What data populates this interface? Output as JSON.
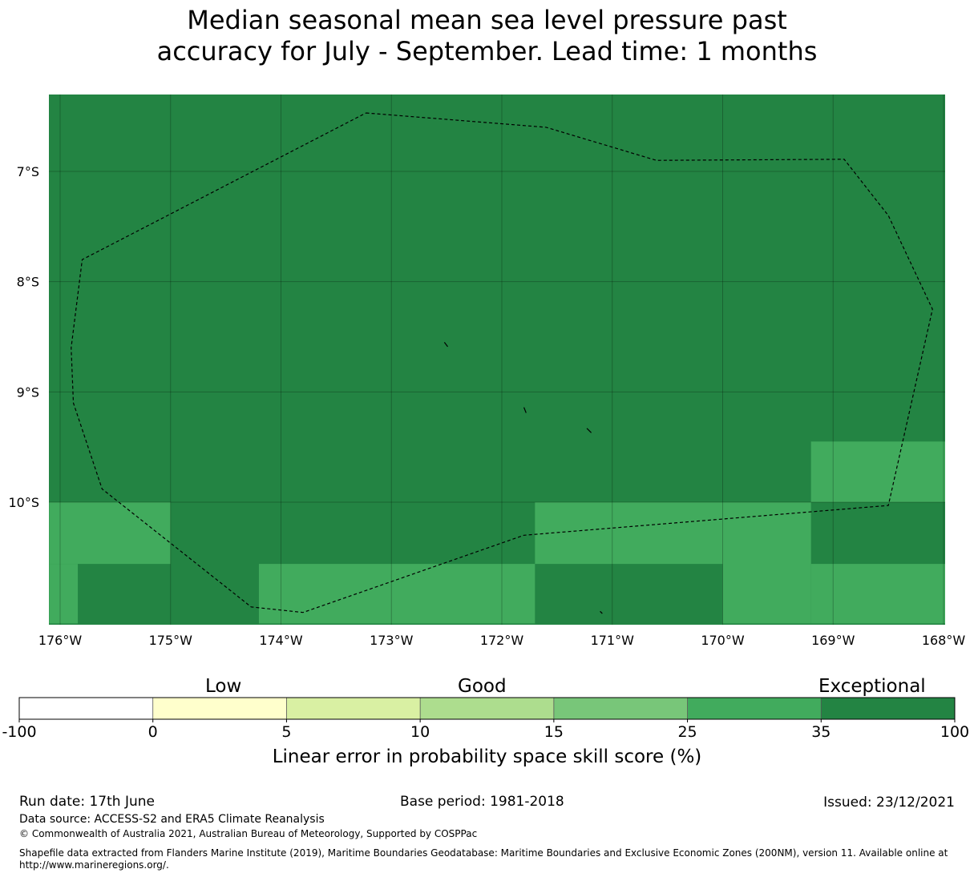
{
  "title": {
    "line1": "Median seasonal mean sea level pressure past",
    "line2": "accuracy for July - September. Lead time: 1 months"
  },
  "map": {
    "lon_range": [
      -176,
      -168
    ],
    "lat_range": [
      -11.1,
      -6.3
    ],
    "lon_ticks": [
      {
        "value": -176,
        "label": "176°W"
      },
      {
        "value": -175,
        "label": "175°W"
      },
      {
        "value": -174,
        "label": "174°W"
      },
      {
        "value": -173,
        "label": "173°W"
      },
      {
        "value": -172,
        "label": "172°W"
      },
      {
        "value": -171,
        "label": "171°W"
      },
      {
        "value": -170,
        "label": "170°W"
      },
      {
        "value": -169,
        "label": "169°W"
      },
      {
        "value": -168,
        "label": "168°W"
      }
    ],
    "lat_ticks": [
      {
        "value": -7,
        "label": "7°S"
      },
      {
        "value": -8,
        "label": "8°S"
      },
      {
        "value": -9,
        "label": "9°S"
      },
      {
        "value": -10,
        "label": "10°S"
      }
    ],
    "background_category": "35-100",
    "cells": [
      {
        "lon": [
          -176.1,
          -175.0
        ],
        "lat": [
          -10.56,
          -10.0
        ],
        "category": "25-35"
      },
      {
        "lon": [
          -176.1,
          -175.84
        ],
        "lat": [
          -11.1,
          -10.56
        ],
        "category": "25-35"
      },
      {
        "lon": [
          -174.2,
          -171.7
        ],
        "lat": [
          -11.1,
          -10.56
        ],
        "category": "25-35"
      },
      {
        "lon": [
          -171.7,
          -170.0
        ],
        "lat": [
          -10.56,
          -10.0
        ],
        "category": "25-35"
      },
      {
        "lon": [
          -170.0,
          -169.2
        ],
        "lat": [
          -11.1,
          -10.0
        ],
        "category": "25-35"
      },
      {
        "lon": [
          -169.2,
          -167.9
        ],
        "lat": [
          -11.1,
          -10.56
        ],
        "category": "25-35"
      },
      {
        "lon": [
          -169.2,
          -167.9
        ],
        "lat": [
          -10.0,
          -9.45
        ],
        "category": "25-35"
      }
    ],
    "eez_boundary": [
      [
        -173.23,
        -6.47
      ],
      [
        -171.6,
        -6.6
      ],
      [
        -170.6,
        -6.9
      ],
      [
        -168.9,
        -6.89
      ],
      [
        -168.5,
        -7.4
      ],
      [
        -168.1,
        -8.25
      ],
      [
        -168.5,
        -10.03
      ],
      [
        -171.8,
        -10.3
      ],
      [
        -173.8,
        -11.0
      ],
      [
        -174.27,
        -10.95
      ],
      [
        -175.62,
        -9.88
      ],
      [
        -175.88,
        -9.1
      ],
      [
        -175.9,
        -8.6
      ],
      [
        -175.8,
        -7.8
      ],
      [
        -173.23,
        -6.47
      ]
    ],
    "islands": [
      [
        [
          -172.52,
          -8.55
        ],
        [
          -172.49,
          -8.59
        ]
      ],
      [
        [
          -171.8,
          -9.14
        ],
        [
          -171.78,
          -9.19
        ]
      ],
      [
        [
          -171.23,
          -9.33
        ],
        [
          -171.19,
          -9.37
        ]
      ],
      [
        [
          -171.11,
          -10.99
        ],
        [
          -171.09,
          -11.01
        ]
      ]
    ]
  },
  "legend": {
    "categories": [
      {
        "range": "-100-0",
        "color": "#ffffff"
      },
      {
        "range": "0-5",
        "color": "#ffffcc"
      },
      {
        "range": "5-10",
        "color": "#d9f0a3"
      },
      {
        "range": "10-15",
        "color": "#addd8e"
      },
      {
        "range": "15-25",
        "color": "#78c679"
      },
      {
        "range": "25-35",
        "color": "#41ab5d"
      },
      {
        "range": "35-100",
        "color": "#238443"
      }
    ],
    "tick_labels": [
      "-100",
      "0",
      "5",
      "10",
      "15",
      "25",
      "35",
      "100"
    ],
    "qualitative": {
      "low": "Low",
      "good": "Good",
      "exceptional": "Exceptional"
    },
    "axis_label": "Linear error in probability space skill score (%)"
  },
  "footer": {
    "run_date": "Run date: 17th June",
    "base_period": "Base period: 1981-2018",
    "issued": "Issued: 23/12/2021",
    "data_source": "Data source: ACCESS-S2 and ERA5 Climate Reanalysis",
    "copyright": "© Commonwealth of Australia 2021, Australian Bureau of Meteorology, Supported by COSPPac",
    "shapefile_line1": "Shapefile data extracted from Flanders Marine Institute (2019), Maritime Boundaries Geodatabase: Maritime Boundaries and Exclusive Economic Zones (200NM), version 11. Available online at",
    "shapefile_line2": "http://www.marineregions.org/."
  }
}
